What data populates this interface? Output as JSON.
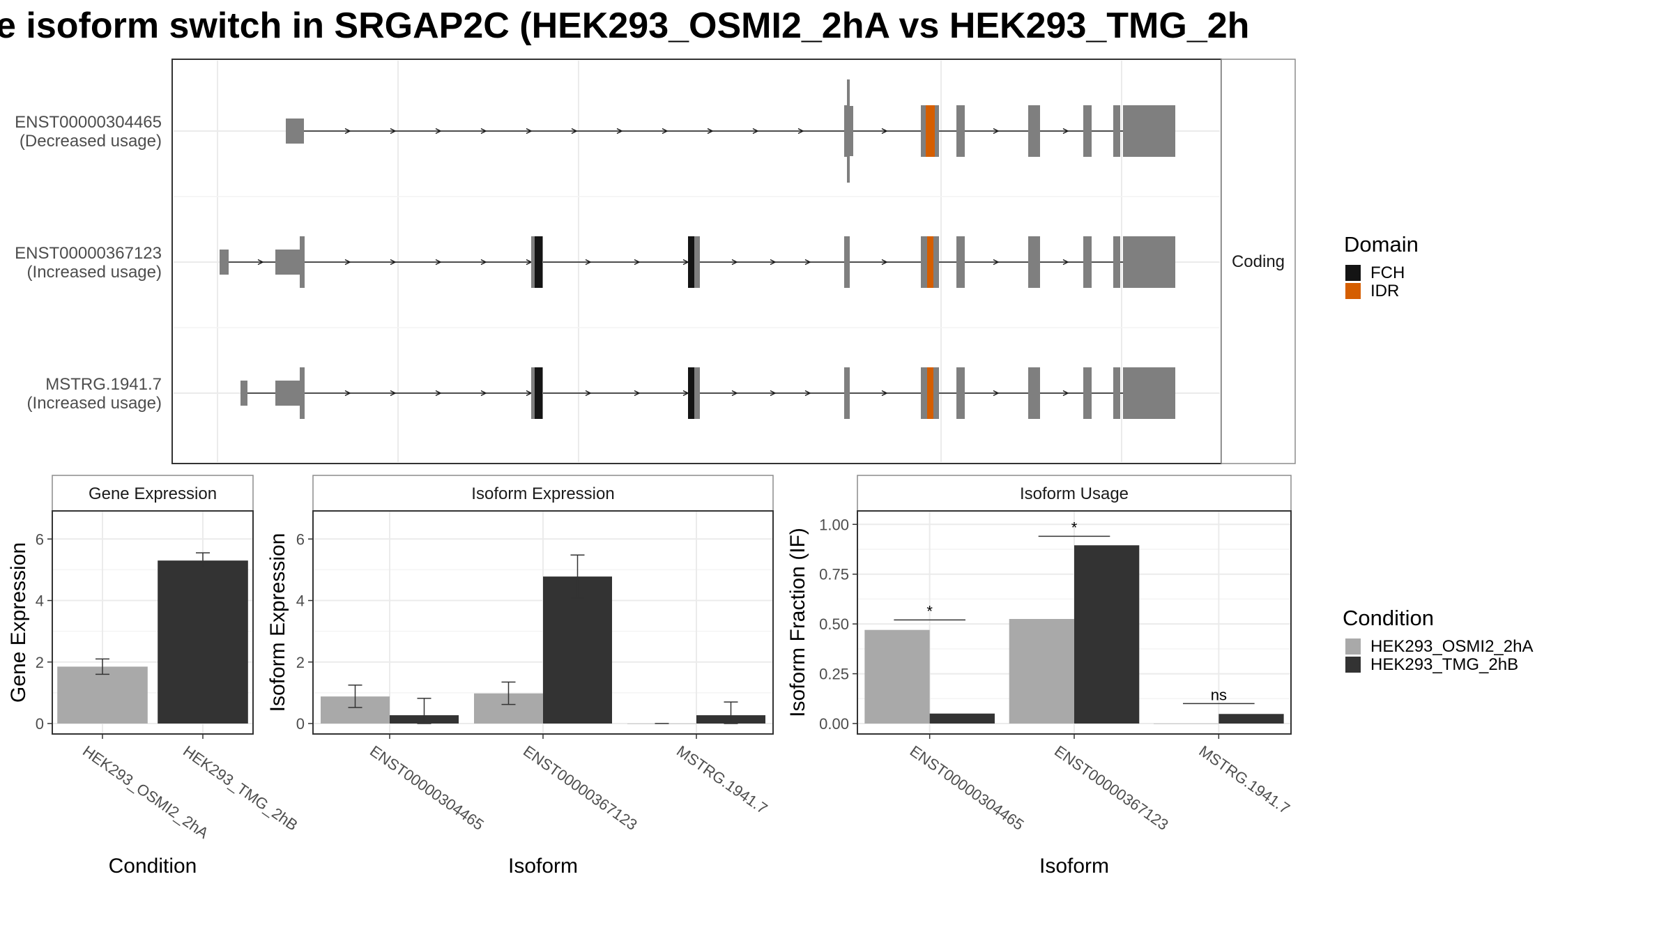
{
  "title": "e isoform switch in SRGAP2C (HEK293_OSMI2_2hA vs HEK293_TMG_2h",
  "colors": {
    "condition_a": "#a9a9a9",
    "condition_b": "#333333",
    "exon": "#7f7f7f",
    "domain_fch": "#141414",
    "domain_idr": "#d55e00",
    "grid": "#ebebeb",
    "strip_border": "#8c8c8c",
    "panel_border": "#333333"
  },
  "transcript_panel": {
    "strip_label": "Coding",
    "transcripts": [
      {
        "id": "ENST00000304465",
        "usage": "(Decreased usage)"
      },
      {
        "id": "ENST00000367123",
        "usage": "(Increased usage)"
      },
      {
        "id": "MSTRG.1941.7",
        "usage": "(Increased usage)"
      }
    ],
    "domain_legend": {
      "title": "Domain",
      "items": [
        {
          "label": "FCH",
          "color": "#141414"
        },
        {
          "label": "IDR",
          "color": "#d55e00"
        }
      ]
    }
  },
  "condition_legend": {
    "title": "Condition",
    "items": [
      {
        "label": "HEK293_OSMI2_2hA",
        "color": "#a9a9a9"
      },
      {
        "label": "HEK293_TMG_2hB",
        "color": "#333333"
      }
    ]
  },
  "chart_data": [
    {
      "type": "bar",
      "title": "Gene Expression",
      "xlabel": "Condition",
      "ylabel": "Gene Expression",
      "ylim": [
        0,
        6.8
      ],
      "yticks": [
        "0",
        "2",
        "4",
        "6"
      ],
      "categories": [
        "HEK293_OSMI2_2hA",
        "HEK293_TMG_2hB"
      ],
      "values": [
        1.85,
        5.3
      ],
      "error_low": [
        1.6,
        5.05
      ],
      "error_high": [
        2.1,
        5.55
      ]
    },
    {
      "type": "bar",
      "title": "Isoform Expression",
      "xlabel": "Isoform",
      "ylabel": "Isoform Expression",
      "ylim": [
        0,
        6.8
      ],
      "yticks": [
        "0",
        "2",
        "4",
        "6"
      ],
      "categories": [
        "ENST00000304465",
        "ENST00000367123",
        "MSTRG.1941.7"
      ],
      "series": [
        {
          "name": "HEK293_OSMI2_2hA",
          "values": [
            0.88,
            0.98,
            0.0
          ],
          "error_low": [
            0.52,
            0.62,
            0.0
          ],
          "error_high": [
            1.25,
            1.35,
            0.0
          ]
        },
        {
          "name": "HEK293_TMG_2hB",
          "values": [
            0.27,
            4.78,
            0.27
          ],
          "error_low": [
            0.0,
            4.08,
            0.0
          ],
          "error_high": [
            0.82,
            5.48,
            0.7
          ]
        }
      ]
    },
    {
      "type": "bar",
      "title": "Isoform Usage",
      "xlabel": "Isoform",
      "ylabel": "Isoform Fraction (IF)",
      "ylim": [
        0,
        1.05
      ],
      "yticks": [
        "0.00",
        "0.25",
        "0.50",
        "0.75",
        "1.00"
      ],
      "categories": [
        "ENST00000304465",
        "ENST00000367123",
        "MSTRG.1941.7"
      ],
      "series": [
        {
          "name": "HEK293_OSMI2_2hA",
          "values": [
            0.47,
            0.525,
            0.0
          ]
        },
        {
          "name": "HEK293_TMG_2hB",
          "values": [
            0.05,
            0.895,
            0.048
          ]
        }
      ],
      "significance": [
        "*",
        "*",
        "ns"
      ],
      "significance_y": [
        0.52,
        0.94,
        0.1
      ]
    }
  ]
}
